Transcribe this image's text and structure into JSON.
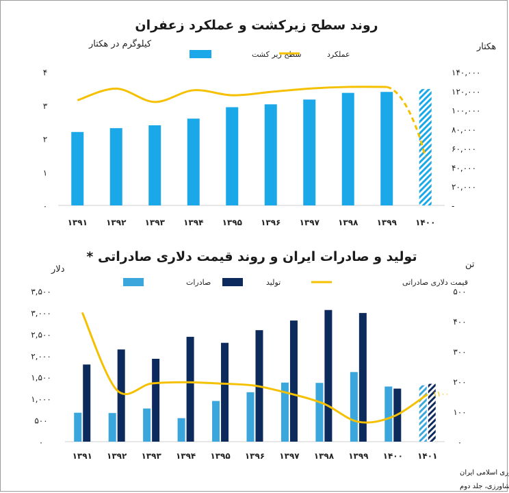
{
  "charts": [
    {
      "title": "روند سطح زیرکشت و عملکرد زعفران",
      "left_unit": "کیلوگرم در هکتار",
      "right_unit": "هکتار",
      "legend": [
        {
          "name": "سطح زیر کشت",
          "color": "#1aa8e8",
          "kind": "bar"
        },
        {
          "name": "عملکرد",
          "color": "#f5c000",
          "kind": "line"
        }
      ],
      "categories": [
        "۱۳۹۱",
        "۱۳۹۲",
        "۱۳۹۳",
        "۱۳۹۴",
        "۱۳۹۵",
        "۱۳۹۶",
        "۱۳۹۷",
        "۱۳۹۸",
        "۱۳۹۹",
        "۱۴۰۰"
      ],
      "left_ticks": [
        "۰",
        "۱",
        "۲",
        "۳",
        "۴"
      ],
      "right_ticks": [
        "-",
        "۲۰,۰۰۰",
        "۴۰,۰۰۰",
        "۶۰,۰۰۰",
        "۸۰,۰۰۰",
        "۱۰۰,۰۰۰",
        "۱۲۰,۰۰۰",
        "۱۴۰,۰۰۰"
      ]
    },
    {
      "title": "تولید و صادرات ایران و روند قیمت دلاری صادراتی *",
      "left_unit": "دلار",
      "right_unit": "تن",
      "legend": [
        {
          "name": "صادرات",
          "color": "#3aa6dc",
          "kind": "bar"
        },
        {
          "name": "تولید",
          "color": "#0d2a5c",
          "kind": "bar"
        },
        {
          "name": "قیمت دلاری صادراتی",
          "color": "#f5c000",
          "kind": "line"
        }
      ],
      "categories": [
        "۱۳۹۱",
        "۱۳۹۲",
        "۱۳۹۳",
        "۱۳۹۴",
        "۱۳۹۵",
        "۱۳۹۶",
        "۱۳۹۷",
        "۱۳۹۸",
        "۱۳۹۹",
        "۱۴۰۰",
        "۱۴۰۱"
      ],
      "left_ticks": [
        "۰",
        "۵۰۰",
        "۱,۰۰۰",
        "۱,۵۰۰",
        "۲,۰۰۰",
        "۲,۵۰۰",
        "۳,۰۰۰",
        "۳,۵۰۰"
      ],
      "right_ticks": [
        "۰",
        "۱۰۰",
        "۲۰۰",
        "۳۰۰",
        "۴۰۰",
        "۵۰۰"
      ],
      "price_label": "۱۱۰۰"
    }
  ],
  "footnotes": [
    "* گمرک جمهوری اسلامی ایران",
    "* آمارنامه کشاورزی، جلد دوم"
  ],
  "chart_data": [
    {
      "type": "bar",
      "title": "روند سطح زیرکشت و عملکرد زعفران",
      "categories": [
        "1391",
        "1392",
        "1393",
        "1394",
        "1395",
        "1396",
        "1397",
        "1398",
        "1399",
        "1400"
      ],
      "series": [
        {
          "name": "سطح زیر کشت",
          "axis": "right",
          "type": "bar",
          "values": [
            77000,
            81000,
            84000,
            91000,
            103000,
            106000,
            111000,
            118000,
            119000,
            122000
          ],
          "hatched_last": true
        },
        {
          "name": "عملکرد",
          "axis": "left",
          "type": "line",
          "values": [
            3.15,
            3.5,
            3.1,
            3.45,
            3.3,
            3.4,
            3.5,
            3.55,
            3.55,
            1.45
          ],
          "dashed_last": true
        }
      ],
      "ylim_left": [
        0,
        4
      ],
      "ylim_right": [
        0,
        140000
      ],
      "ylabel_left": "کیلوگرم در هکتار",
      "ylabel_right": "هکتار",
      "legend_position": "top-center"
    },
    {
      "type": "bar",
      "title": "تولید و صادرات ایران و روند قیمت دلاری صادراتی *",
      "categories": [
        "1391",
        "1392",
        "1393",
        "1394",
        "1395",
        "1396",
        "1397",
        "1398",
        "1399",
        "1400",
        "1401"
      ],
      "series": [
        {
          "name": "صادرات",
          "axis": "right",
          "type": "bar",
          "values": [
            96,
            95,
            110,
            78,
            135,
            164,
            196,
            195,
            231,
            183,
            187
          ],
          "hatched_last": true
        },
        {
          "name": "تولید",
          "axis": "right",
          "type": "bar",
          "values": [
            256,
            306,
            275,
            348,
            328,
            370,
            402,
            437,
            427,
            176,
            192
          ],
          "hatched_last": true
        },
        {
          "name": "قیمت دلاری صادراتی",
          "axis": "left",
          "type": "line",
          "values": [
            3000,
            1200,
            1350,
            1380,
            1350,
            1300,
            1120,
            880,
            460,
            580,
            1100
          ]
        }
      ],
      "ylim_left": [
        0,
        3500
      ],
      "ylim_right": [
        0,
        500
      ],
      "ylabel_left": "دلار",
      "ylabel_right": "تن",
      "legend_position": "top-center"
    }
  ]
}
